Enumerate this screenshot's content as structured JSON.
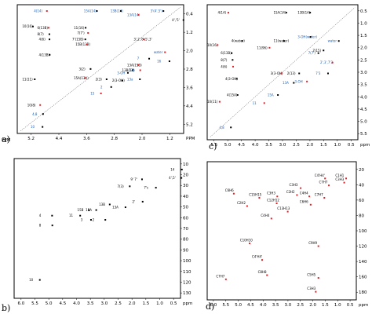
{
  "colors": {
    "black": "#000000",
    "red": "#e0202a",
    "blue": "#1f5fb0",
    "frame": "#000000"
  },
  "panels": [
    {
      "id": "a",
      "letter": "a)",
      "x_unit": "PPM",
      "y_unit": "PPM",
      "x_ticks": [
        "5.2",
        "4.4",
        "3.6",
        "2.8",
        "2.0",
        "1.2"
      ],
      "y_ticks": [
        "0.4",
        "1.2",
        "2.0",
        "2.8",
        "3.6",
        "4.4",
        "5.2"
      ],
      "labels": [
        {
          "text": "4(14)",
          "x": 0.1,
          "y": 0.04,
          "color": "blue"
        },
        {
          "text": "15A(14)",
          "x": 0.4,
          "y": 0.04,
          "color": "blue"
        },
        {
          "text": "13B(14)",
          "x": 0.56,
          "y": 0.04,
          "color": "blue"
        },
        {
          "text": "13A(14)",
          "x": 0.66,
          "y": 0.07,
          "color": "blue"
        },
        {
          "text": "3'(4',5')",
          "x": 0.8,
          "y": 0.04,
          "color": "blue"
        },
        {
          "text": "10(16)",
          "x": 0.03,
          "y": 0.16,
          "color": "black"
        },
        {
          "text": "6(13B)",
          "x": 0.12,
          "y": 0.17,
          "color": "black"
        },
        {
          "text": "11(16)",
          "x": 0.34,
          "y": 0.17,
          "color": "black"
        },
        {
          "text": "8(7)",
          "x": 0.12,
          "y": 0.22,
          "color": "black"
        },
        {
          "text": "7(7')",
          "x": 0.36,
          "y": 0.21,
          "color": "black"
        },
        {
          "text": "4(6)",
          "x": 0.13,
          "y": 0.26,
          "color": "black"
        },
        {
          "text": "7'(15B)",
          "x": 0.33,
          "y": 0.26,
          "color": "black"
        },
        {
          "text": "15B(13B)",
          "x": 0.35,
          "y": 0.3,
          "color": "black"
        },
        {
          "text": "4(13B)",
          "x": 0.13,
          "y": 0.38,
          "color": "black"
        },
        {
          "text": "3(2)",
          "x": 0.37,
          "y": 0.49,
          "color": "black"
        },
        {
          "text": "13A(15B)",
          "x": 0.66,
          "y": 0.46,
          "color": "black"
        },
        {
          "text": "13B(14)",
          "x": 0.63,
          "y": 0.5,
          "color": "black"
        },
        {
          "text": "11(11)",
          "x": 0.03,
          "y": 0.57,
          "color": "black"
        },
        {
          "text": "15A(13A)",
          "x": 0.34,
          "y": 0.56,
          "color": "black"
        },
        {
          "text": "2(3)",
          "x": 0.47,
          "y": 0.57,
          "color": "black"
        },
        {
          "text": "2(3-OH)",
          "x": 0.57,
          "y": 0.58,
          "color": "black"
        },
        {
          "text": "10(8)",
          "x": 0.06,
          "y": 0.77,
          "color": "black"
        },
        {
          "text": "3-OH",
          "x": 0.6,
          "y": 0.52,
          "color": "blue"
        },
        {
          "text": "13a",
          "x": 0.66,
          "y": 0.57,
          "color": "blue"
        },
        {
          "text": "13b",
          "x": 0.67,
          "y": 0.5,
          "color": "blue"
        },
        {
          "text": "4,8",
          "x": 0.09,
          "y": 0.84,
          "color": "blue"
        },
        {
          "text": "10",
          "x": 0.08,
          "y": 0.94,
          "color": "blue"
        },
        {
          "text": "water",
          "x": 0.82,
          "y": 0.36,
          "color": "blue"
        },
        {
          "text": "16",
          "x": 0.84,
          "y": 0.43,
          "color": "blue"
        },
        {
          "text": "7",
          "x": 0.72,
          "y": 0.41,
          "color": "blue"
        },
        {
          "text": "15",
          "x": 0.44,
          "y": 0.68,
          "color": "blue"
        },
        {
          "text": "2",
          "x": 0.5,
          "y": 0.63,
          "color": "blue"
        },
        {
          "text": "4','5'",
          "x": 0.93,
          "y": 0.11,
          "color": "black"
        },
        {
          "text": "3',2',6',5',3'",
          "x": 0.7,
          "y": 0.26,
          "color": "black"
        }
      ]
    },
    {
      "id": "c",
      "letter": "c)",
      "x_unit": "",
      "y_unit": "ppm",
      "x_ticks": [
        "5.5",
        "5.0",
        "4.5",
        "4.0",
        "3.5",
        "3.0",
        "2.5",
        "2.0",
        "1.5",
        "1.0",
        "0.5"
      ],
      "y_ticks": [
        "0.5",
        "1.0",
        "1.5",
        "2.0",
        "2.5",
        "3.0",
        "3.5",
        "4.0",
        "4.5",
        "5.0",
        "5.5"
      ],
      "labels": [
        {
          "text": "4(14)",
          "x": 0.07,
          "y": 0.05,
          "color": "black"
        },
        {
          "text": "15A(14)",
          "x": 0.44,
          "y": 0.05,
          "color": "black"
        },
        {
          "text": "13B(14)",
          "x": 0.6,
          "y": 0.05,
          "color": "black"
        },
        {
          "text": "10(16)",
          "x": 0.0,
          "y": 0.29,
          "color": "black"
        },
        {
          "text": "4(water)",
          "x": 0.16,
          "y": 0.26,
          "color": "black"
        },
        {
          "text": "11(water)",
          "x": 0.44,
          "y": 0.26,
          "color": "black"
        },
        {
          "text": "11(96)",
          "x": 0.33,
          "y": 0.31,
          "color": "black"
        },
        {
          "text": "6(13B)",
          "x": 0.09,
          "y": 0.35,
          "color": "black"
        },
        {
          "text": "8(7)",
          "x": 0.09,
          "y": 0.4,
          "color": "black"
        },
        {
          "text": "4(6)",
          "x": 0.09,
          "y": 0.45,
          "color": "black"
        },
        {
          "text": "7(15)",
          "x": 0.7,
          "y": 0.33,
          "color": "black"
        },
        {
          "text": "4(3-OH)",
          "x": 0.12,
          "y": 0.54,
          "color": "black"
        },
        {
          "text": "3(3-OH)",
          "x": 0.42,
          "y": 0.5,
          "color": "black"
        },
        {
          "text": "2(13)",
          "x": 0.53,
          "y": 0.5,
          "color": "black"
        },
        {
          "text": "4(15A)",
          "x": 0.13,
          "y": 0.66,
          "color": "black"
        },
        {
          "text": "10(11)",
          "x": 0.0,
          "y": 0.71,
          "color": "black"
        },
        {
          "text": "3-OH(water)",
          "x": 0.6,
          "y": 0.23,
          "color": "blue"
        },
        {
          "text": "water",
          "x": 0.8,
          "y": 0.26,
          "color": "blue"
        },
        {
          "text": "3-OH",
          "x": 0.58,
          "y": 0.56,
          "color": "blue"
        },
        {
          "text": "13A",
          "x": 0.5,
          "y": 0.57,
          "color": "blue"
        },
        {
          "text": "15A",
          "x": 0.4,
          "y": 0.66,
          "color": "blue"
        },
        {
          "text": "11",
          "x": 0.3,
          "y": 0.72,
          "color": "blue"
        },
        {
          "text": "4,8",
          "x": 0.08,
          "y": 0.9,
          "color": "blue"
        },
        {
          "text": "7(7')",
          "x": 0.67,
          "y": 0.35,
          "color": "blue"
        },
        {
          "text": "2',3',7'3",
          "x": 0.75,
          "y": 0.42,
          "color": "blue"
        },
        {
          "text": "7'3",
          "x": 0.72,
          "y": 0.5,
          "color": "blue"
        }
      ]
    },
    {
      "id": "b",
      "letter": "b)",
      "x_unit": "",
      "y_unit": "ppm",
      "x_ticks": [
        "6.0",
        "5.5",
        "5.0",
        "4.5",
        "4.0",
        "3.5",
        "3.0",
        "2.5",
        "2.0",
        "1.5",
        "1.0",
        "0.5"
      ],
      "y_ticks": [
        "10",
        "20",
        "30",
        "40",
        "50",
        "60",
        "70",
        "80",
        "90",
        "100",
        "110",
        "120",
        "130"
      ],
      "labels": [
        {
          "text": "14",
          "x": 0.94,
          "y": 0.07,
          "color": "black"
        },
        {
          "text": "4',5'",
          "x": 0.93,
          "y": 0.13,
          "color": "black"
        },
        {
          "text": "9' 7'",
          "x": 0.7,
          "y": 0.14,
          "color": "black"
        },
        {
          "text": "7(3)",
          "x": 0.62,
          "y": 0.19,
          "color": "black"
        },
        {
          "text": "7'c",
          "x": 0.78,
          "y": 0.2,
          "color": "black"
        },
        {
          "text": "2'",
          "x": 0.71,
          "y": 0.3,
          "color": "black"
        },
        {
          "text": "13B",
          "x": 0.51,
          "y": 0.32,
          "color": "black"
        },
        {
          "text": "13A",
          "x": 0.59,
          "y": 0.34,
          "color": "black"
        },
        {
          "text": "15B",
          "x": 0.38,
          "y": 0.36,
          "color": "black"
        },
        {
          "text": "15A",
          "x": 0.43,
          "y": 0.36,
          "color": "black"
        },
        {
          "text": "11",
          "x": 0.33,
          "y": 0.4,
          "color": "black"
        },
        {
          "text": "4",
          "x": 0.15,
          "y": 0.4,
          "color": "black"
        },
        {
          "text": "8",
          "x": 0.15,
          "y": 0.47,
          "color": "black"
        },
        {
          "text": "3",
          "x": 0.4,
          "y": 0.43,
          "color": "black"
        },
        {
          "text": "2",
          "x": 0.47,
          "y": 0.43,
          "color": "black"
        },
        {
          "text": "10",
          "x": 0.09,
          "y": 0.86,
          "color": "black"
        }
      ]
    },
    {
      "id": "d",
      "letter": "d)",
      "x_unit": "",
      "y_unit": "ppm",
      "x_ticks": [
        "6.0",
        "5.5",
        "5.0",
        "4.5",
        "4.0",
        "3.5",
        "3.0",
        "2.5",
        "2.0",
        "1.5",
        "1.0",
        "0.5"
      ],
      "y_ticks": [
        "20",
        "40",
        "60",
        "80",
        "100",
        "120",
        "140",
        "160",
        "180"
      ],
      "labels": [
        {
          "text": "C4'H4'",
          "x": 0.72,
          "y": 0.09,
          "color": "black"
        },
        {
          "text": "C1H1",
          "x": 0.86,
          "y": 0.09,
          "color": "black"
        },
        {
          "text": "C3H3",
          "x": 0.86,
          "y": 0.12,
          "color": "black"
        },
        {
          "text": "C7H7",
          "x": 0.75,
          "y": 0.14,
          "color": "black"
        },
        {
          "text": "C3H3",
          "x": 0.55,
          "y": 0.16,
          "color": "black"
        },
        {
          "text": "C6H6",
          "x": 0.12,
          "y": 0.2,
          "color": "black"
        },
        {
          "text": "C3H3",
          "x": 0.4,
          "y": 0.22,
          "color": "black"
        },
        {
          "text": "C2H2",
          "x": 0.53,
          "y": 0.21,
          "color": "black"
        },
        {
          "text": "C4H4",
          "x": 0.62,
          "y": 0.22,
          "color": "black"
        },
        {
          "text": "C15H15",
          "x": 0.28,
          "y": 0.23,
          "color": "black"
        },
        {
          "text": "C12H12",
          "x": 0.4,
          "y": 0.27,
          "color": "black"
        },
        {
          "text": "C7H7",
          "x": 0.72,
          "y": 0.23,
          "color": "black"
        },
        {
          "text": "C6H6",
          "x": 0.62,
          "y": 0.28,
          "color": "black"
        },
        {
          "text": "C2H2",
          "x": 0.2,
          "y": 0.29,
          "color": "black"
        },
        {
          "text": "C13H13",
          "x": 0.47,
          "y": 0.33,
          "color": "black"
        },
        {
          "text": "C4H4",
          "x": 0.36,
          "y": 0.38,
          "color": "black"
        },
        {
          "text": "C10H10",
          "x": 0.22,
          "y": 0.56,
          "color": "black"
        },
        {
          "text": "C9H9",
          "x": 0.68,
          "y": 0.58,
          "color": "black"
        },
        {
          "text": "C4'H4'",
          "x": 0.3,
          "y": 0.68,
          "color": "black"
        },
        {
          "text": "C7H7",
          "x": 0.06,
          "y": 0.82,
          "color": "black"
        },
        {
          "text": "C8H8",
          "x": 0.34,
          "y": 0.79,
          "color": "black"
        },
        {
          "text": "C5H5",
          "x": 0.67,
          "y": 0.81,
          "color": "black"
        },
        {
          "text": "C3H3",
          "x": 0.67,
          "y": 0.91,
          "color": "black"
        }
      ]
    }
  ]
}
